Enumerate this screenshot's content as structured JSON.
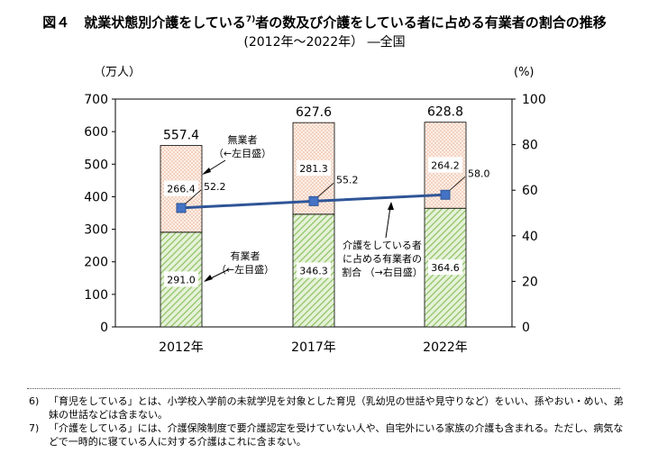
{
  "title": {
    "fig_label": "図４",
    "main": "就業状態別介護をしている",
    "note_ref": "7)",
    "main_suffix": "者の数及び介護をしている者に占める有業者の割合の推移",
    "subtitle": "(2012年～2022年） ―全国"
  },
  "chart_data": {
    "type": "bar",
    "categories": [
      "2012年",
      "2017年",
      "2022年"
    ],
    "series": [
      {
        "name": "有業者",
        "values": [
          291.0,
          346.3,
          364.6
        ],
        "labels": [
          "291.0",
          "346.3",
          "364.6"
        ],
        "color": "#9ccc6b"
      },
      {
        "name": "無業者",
        "values": [
          266.4,
          281.3,
          264.2
        ],
        "labels": [
          "266.4",
          "281.3",
          "264.2"
        ],
        "color": "#f3c9b4"
      }
    ],
    "totals": [
      557.4,
      627.6,
      628.8
    ],
    "total_labels": [
      "557.4",
      "627.6",
      "628.8"
    ],
    "line": {
      "name": "介護をしている者に占める有業者の割合",
      "values": [
        52.2,
        55.2,
        58.0
      ],
      "labels": [
        "52.2",
        "55.2",
        "58.0"
      ],
      "color": "#2f5597",
      "marker_color": "#4472c4"
    },
    "left_axis": {
      "unit": "（万人）",
      "range": [
        0,
        700
      ],
      "ticks": [
        "0",
        "100",
        "200",
        "300",
        "400",
        "500",
        "600",
        "700"
      ]
    },
    "right_axis": {
      "unit": "(%)",
      "range": [
        0,
        100
      ],
      "ticks": [
        "0",
        "20",
        "40",
        "60",
        "80",
        "100"
      ]
    },
    "annotations": {
      "unemployed": [
        "無業者",
        "（←左目盛）"
      ],
      "employed": [
        "有業者",
        "（←左目盛）"
      ],
      "ratio": [
        "介護をしている者",
        "に占める有業者の",
        "割合 （→右目盛）"
      ]
    }
  },
  "notes": [
    {
      "mark": "6)",
      "text": "「育児をしている」とは、小学校入学前の未就学児を対象とした育児（乳幼児の世話や見守りなど）をいい、孫やおい・めい、弟妹の世話などは含まない。"
    },
    {
      "mark": "7)",
      "text": "「介護をしている」には、介護保険制度で要介護認定を受けていない人や、自宅外にいる家族の介護も含まれる。ただし、病気などで一時的に寝ている人に対する介護はこれに含まない。"
    }
  ]
}
